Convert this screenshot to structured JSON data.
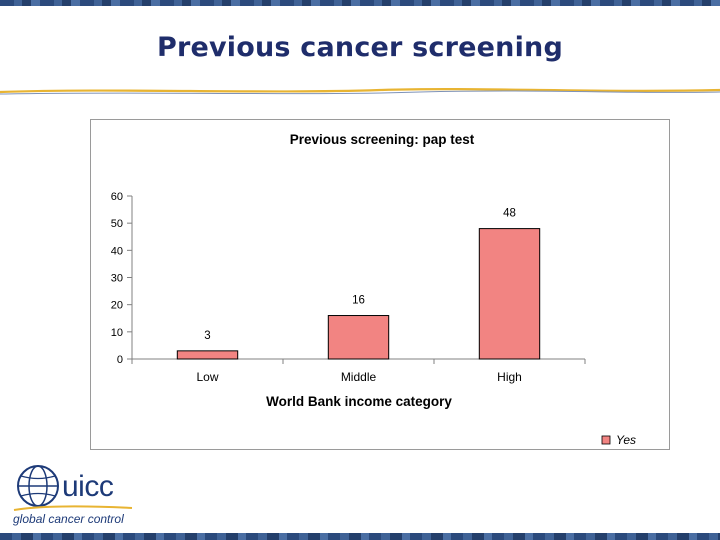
{
  "slide": {
    "title": "Previous cancer screening",
    "border_color": "#2b4a7c",
    "rule_color": "#e8b432"
  },
  "logo": {
    "name": "uicc",
    "tagline": "global cancer control",
    "icon": "globe-icon",
    "color": "#1d3a78"
  },
  "chart_data": {
    "type": "bar",
    "title": "Previous screening: pap test",
    "xlabel": "World Bank income category",
    "ylabel": "",
    "categories": [
      "Low",
      "Middle",
      "High"
    ],
    "series": [
      {
        "name": "Yes",
        "values": [
          3,
          16,
          48
        ],
        "color": "#f28482"
      }
    ],
    "data_labels": [
      "3",
      "16",
      "48"
    ],
    "ylim": [
      0,
      60
    ],
    "yticks": [
      0,
      10,
      20,
      30,
      40,
      50,
      60
    ],
    "grid": false,
    "legend_position": "bottom-right"
  }
}
